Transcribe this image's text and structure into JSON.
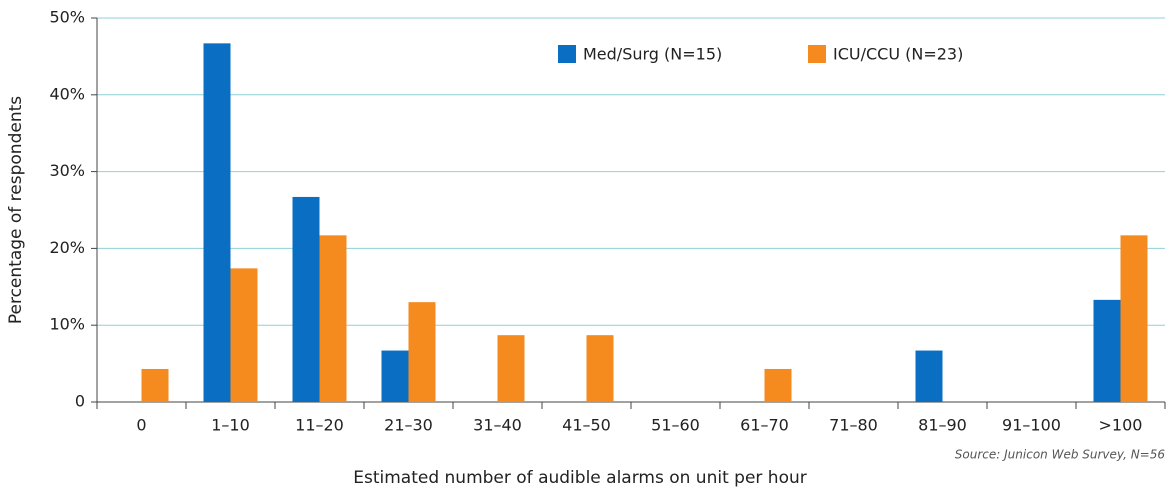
{
  "chart_data": {
    "type": "bar",
    "x_label": "Estimated number of audible alarms on unit per hour",
    "y_label": "Percentage of respondents",
    "source": "Source: Junicon Web Survey, N=56",
    "categories": [
      "0",
      "1–10",
      "11–20",
      "21–30",
      "31–40",
      "41–50",
      "51–60",
      "61–70",
      "71–80",
      "81–90",
      "91–100",
      ">100"
    ],
    "series": [
      {
        "name": "Med/Surg (N=15)",
        "color": "#0a6fc2",
        "values": [
          0,
          46.7,
          26.7,
          6.7,
          0,
          0,
          0,
          0,
          0,
          6.7,
          0,
          13.3
        ]
      },
      {
        "name": "ICU/CCU (N=23)",
        "color": "#f58a1f",
        "values": [
          4.3,
          17.4,
          21.7,
          13.0,
          8.7,
          8.7,
          0,
          4.3,
          0,
          0,
          0,
          21.7
        ]
      }
    ],
    "ylim": [
      0,
      50
    ],
    "yticks": [
      0,
      {
        "value": 10,
        "label": "10%"
      },
      {
        "value": 20,
        "label": "20%"
      },
      {
        "value": 30,
        "label": "30%"
      },
      {
        "value": 40,
        "label": "40%"
      },
      {
        "value": 50,
        "label": "50%"
      }
    ],
    "grid": true,
    "legend": "top"
  }
}
